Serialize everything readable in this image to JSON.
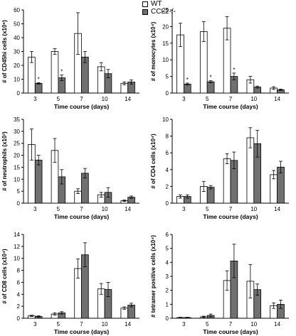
{
  "legend": [
    {
      "name": "WT",
      "color": "#ffffff"
    },
    {
      "name": "CCL2-/-",
      "color": "#707070"
    }
  ],
  "chart_data": [
    {
      "type": "bar",
      "categories": [
        "3",
        "5",
        "7",
        "10",
        "14"
      ],
      "xlabel": "Time course (days)",
      "ylabel": "# of CD45hi cells (x10⁶)",
      "ylim": [
        0,
        60
      ],
      "yticks": [
        0,
        10,
        20,
        30,
        40,
        50,
        60
      ],
      "series": [
        {
          "name": "WT",
          "values": [
            26,
            30,
            43,
            19,
            7
          ],
          "errors": [
            4,
            2,
            15,
            3,
            1
          ]
        },
        {
          "name": "CCL2-/-",
          "values": [
            7,
            11,
            26,
            14,
            8
          ],
          "errors": [
            0.5,
            2,
            4,
            3,
            1.5
          ]
        }
      ],
      "annotations": [
        {
          "category": "3",
          "text": "*"
        },
        {
          "category": "5",
          "text": "*"
        }
      ]
    },
    {
      "type": "bar",
      "categories": [
        "3",
        "5",
        "7",
        "10",
        "14"
      ],
      "xlabel": "Time course (days)",
      "ylabel": "# of monocytes (x10⁴)",
      "ylim": [
        0,
        25
      ],
      "yticks": [
        0,
        5,
        10,
        15,
        20,
        25
      ],
      "series": [
        {
          "name": "WT",
          "values": [
            17.5,
            18.5,
            19.5,
            4,
            1.5
          ],
          "errors": [
            3.5,
            3,
            3.5,
            1,
            0.4
          ]
        },
        {
          "name": "CCL2-/-",
          "values": [
            2.7,
            3.4,
            5,
            1.8,
            1
          ],
          "errors": [
            0.3,
            0.3,
            1,
            0.3,
            0.2
          ]
        }
      ],
      "annotations": [
        {
          "category": "3",
          "text": "*"
        },
        {
          "category": "5",
          "text": "*"
        },
        {
          "category": "7",
          "text": "*"
        }
      ]
    },
    {
      "type": "bar",
      "categories": [
        "3",
        "5",
        "7",
        "10",
        "14"
      ],
      "xlabel": "Time course (days)",
      "ylabel": "# of neutrophils (x10³)",
      "ylim": [
        0,
        35
      ],
      "yticks": [
        0,
        5,
        10,
        15,
        20,
        25,
        30,
        35
      ],
      "series": [
        {
          "name": "WT",
          "values": [
            24.5,
            22,
            5,
            3.5,
            1
          ],
          "errors": [
            6.5,
            5,
            1,
            1,
            0.3
          ]
        },
        {
          "name": "CCL2-/-",
          "values": [
            18,
            11,
            12.5,
            4.5,
            2.5
          ],
          "errors": [
            2,
            3,
            2,
            2,
            0.5
          ]
        }
      ]
    },
    {
      "type": "bar",
      "categories": [
        "3",
        "5",
        "7",
        "10",
        "14"
      ],
      "xlabel": "Time course (days)",
      "ylabel": "# of CD4 cells (x10⁴)",
      "ylim": [
        0,
        10
      ],
      "yticks": [
        0,
        2,
        4,
        6,
        8,
        10
      ],
      "series": [
        {
          "name": "WT",
          "values": [
            0.8,
            2,
            5.3,
            7.8,
            3.4
          ],
          "errors": [
            0.2,
            0.6,
            0.6,
            1.2,
            0.5
          ]
        },
        {
          "name": "CCL2-/-",
          "values": [
            0.8,
            1.9,
            5.1,
            7.1,
            4.3
          ],
          "errors": [
            0.2,
            0.2,
            1,
            1.6,
            0.7
          ]
        }
      ]
    },
    {
      "type": "bar",
      "categories": [
        "3",
        "5",
        "7",
        "10",
        "14"
      ],
      "xlabel": "Time course (days)",
      "ylabel": "# of CD8 cells (x10⁴)",
      "ylim": [
        0,
        14
      ],
      "yticks": [
        0,
        2,
        4,
        6,
        8,
        10,
        12,
        14
      ],
      "series": [
        {
          "name": "WT",
          "values": [
            0.4,
            0.7,
            8.3,
            4.9,
            1.7
          ],
          "errors": [
            0.1,
            0.2,
            1.6,
            0.9,
            0.2
          ]
        },
        {
          "name": "CCL2-/-",
          "values": [
            0.3,
            0.9,
            10.6,
            4.8,
            2.2
          ],
          "errors": [
            0.1,
            0.2,
            2,
            1.2,
            0.3
          ]
        }
      ]
    },
    {
      "type": "bar",
      "categories": [
        "3",
        "5",
        "7",
        "10",
        "14"
      ],
      "xlabel": "Time course (days)",
      "ylabel": "# tetramer positive cells (x10⁴)",
      "ylim": [
        0,
        6
      ],
      "yticks": [
        0,
        1,
        2,
        3,
        4,
        5,
        6
      ],
      "series": [
        {
          "name": "WT",
          "values": [
            0.05,
            0.1,
            2.7,
            2.65,
            0.9
          ],
          "errors": [
            0.02,
            0.05,
            0.7,
            1.2,
            0.2
          ]
        },
        {
          "name": "CCL2-/-",
          "values": [
            0.05,
            0.2,
            4.1,
            2.05,
            1
          ],
          "errors": [
            0.02,
            0.1,
            1.2,
            0.4,
            0.3
          ]
        }
      ]
    }
  ]
}
